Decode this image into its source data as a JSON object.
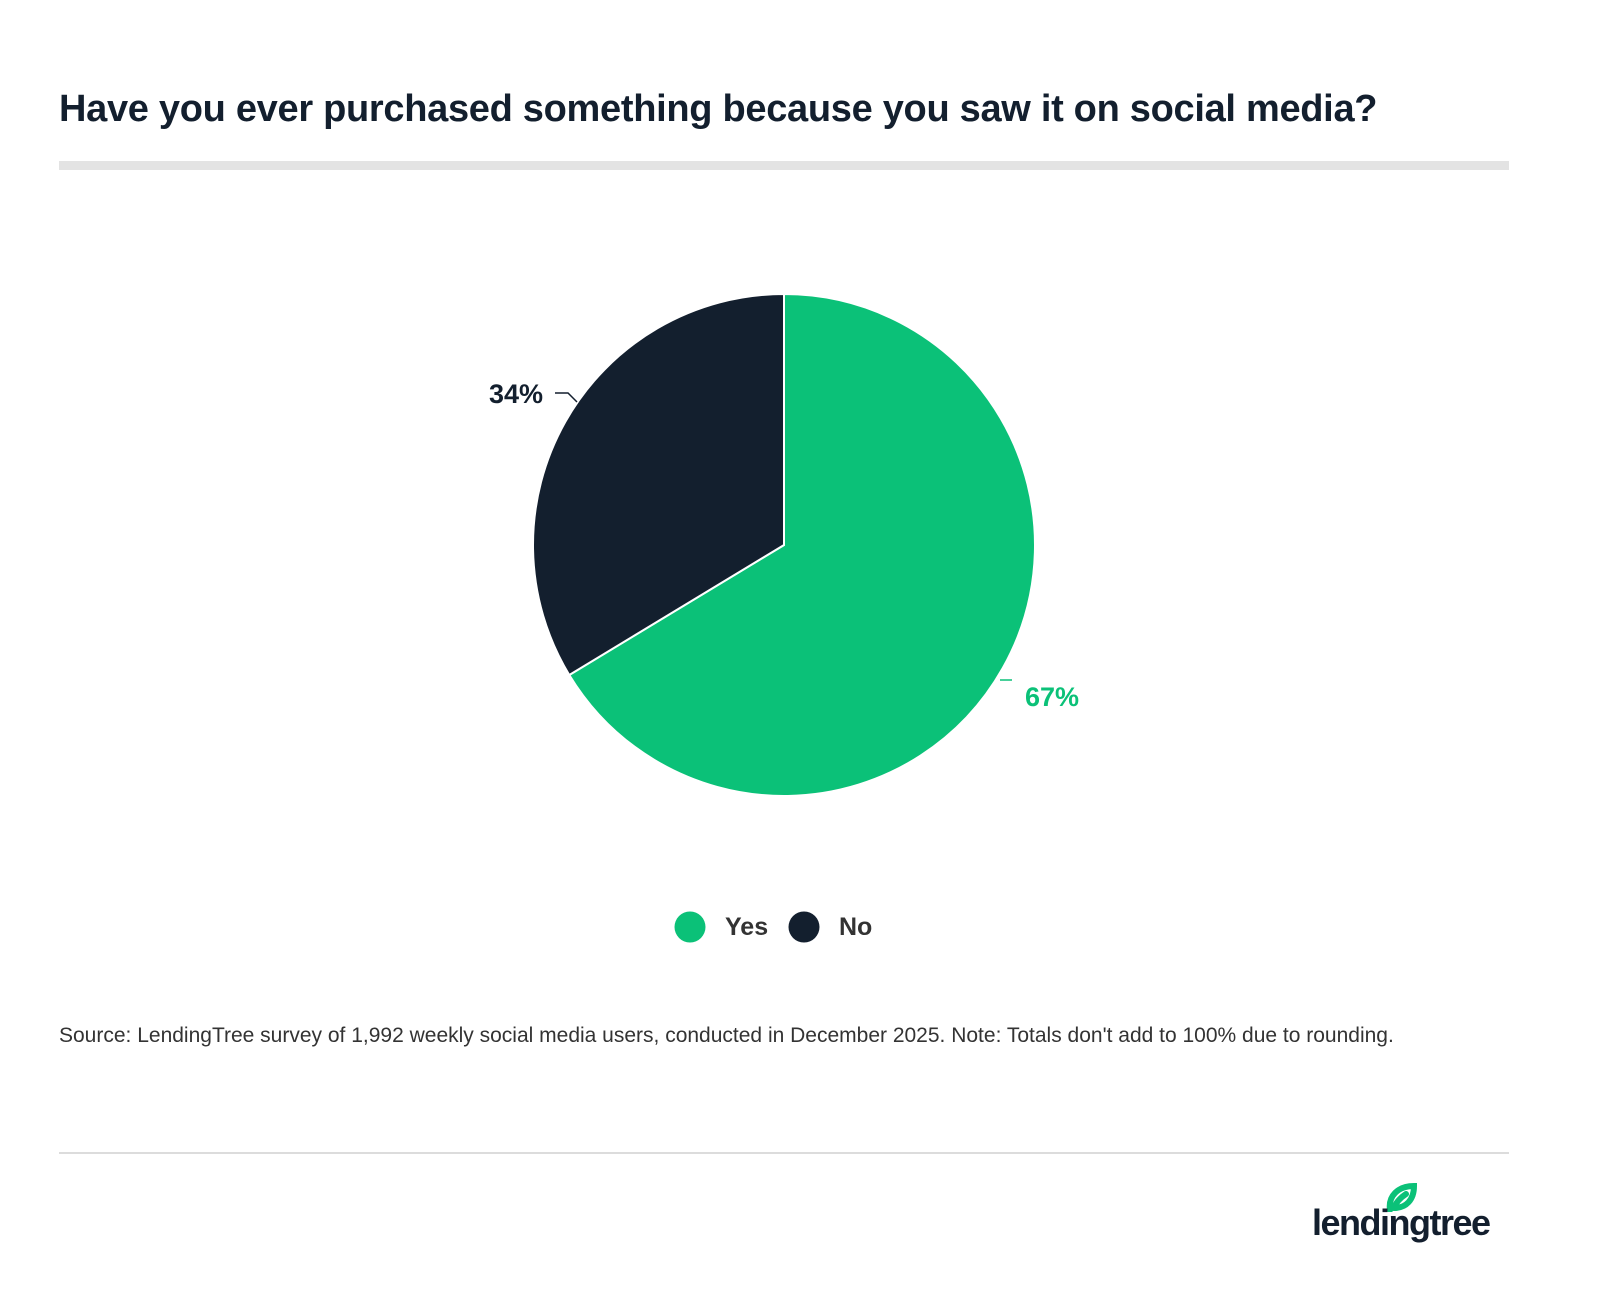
{
  "title": "Have you ever purchased something because you saw it on social media?",
  "chart_data": {
    "type": "pie",
    "title": "Have you ever purchased something because you saw it on social media?",
    "categories": [
      "Yes",
      "No"
    ],
    "values": [
      67,
      34
    ],
    "labels": [
      "67%",
      "34%"
    ],
    "colors": [
      "#0bc178",
      "#131f2e"
    ],
    "legend": "bottom-center",
    "start": "12 o'clock, clockwise"
  },
  "source": "Source: LendingTree survey of 1,992 weekly social media users, conducted in December 2025. Note: Totals don't add to 100% due to rounding.",
  "logo": {
    "text": "lendingtree",
    "icon": "leaf-icon",
    "color": "#0bc178"
  }
}
